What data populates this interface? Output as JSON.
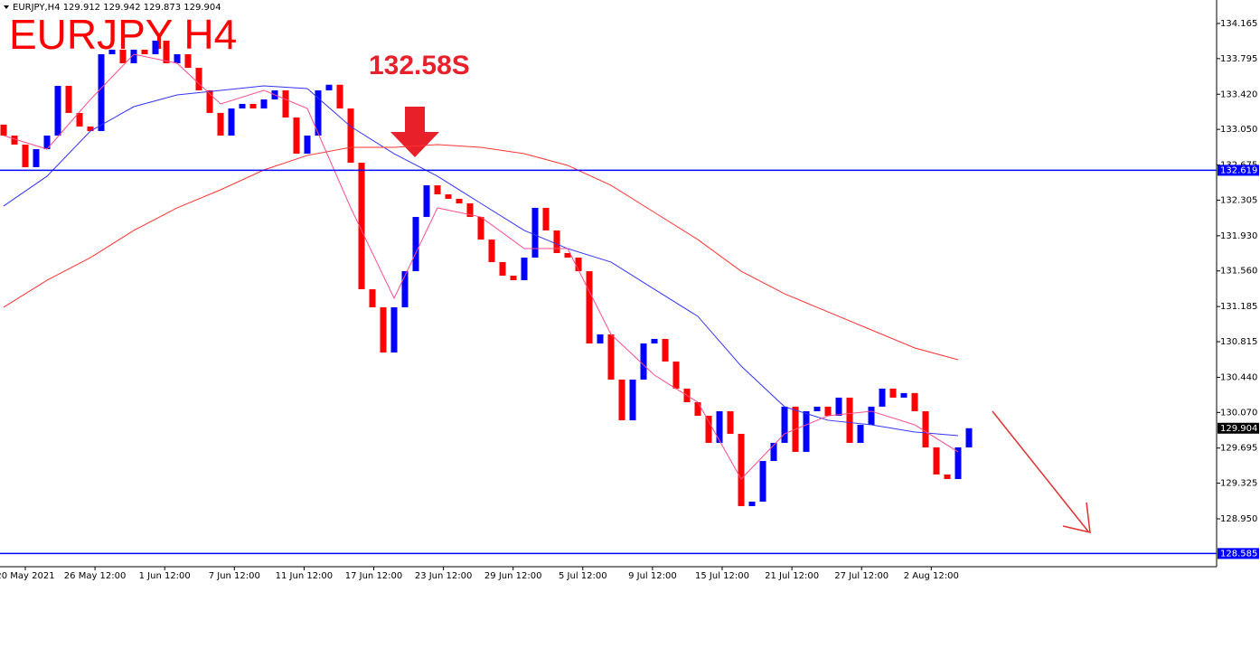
{
  "chart_data": {
    "type": "candlestick",
    "header": "EURJPY,H4  129.912 129.942 129.873 129.904",
    "title": "EURJPY H4",
    "annotation": "132.58S",
    "up_color": "#0000ff",
    "down_color": "#ff0000",
    "ylim": [
      128.446,
      134.412
    ],
    "yticks": [
      134.165,
      133.795,
      {
        "value": 133.42,
        "label": "133.420"
      },
      {
        "value": 133.05,
        "label": "133.050"
      },
      132.675,
      132.305,
      {
        "value": 131.93,
        "label": "131.930"
      },
      {
        "value": 131.56,
        "label": "131.560"
      },
      131.185,
      130.815,
      {
        "value": 130.44,
        "label": "130.440"
      },
      {
        "value": 130.07,
        "label": "130.070"
      },
      129.695,
      129.325,
      {
        "value": 128.95,
        "label": "128.950"
      }
    ],
    "xticks": [
      "20 May 2021",
      "26 May 12:00",
      "1 Jun 12:00",
      "7 Jun 12:00",
      "11 Jun 12:00",
      "17 Jun 12:00",
      "23 Jun 12:00",
      "29 Jun 12:00",
      "5 Jul 12:00",
      "9 Jul 12:00",
      "15 Jul 12:00",
      "21 Jul 12:00",
      "27 Jul 12:00",
      "2 Aug 12:00"
    ],
    "open": [
      133.1,
      132.985,
      132.89,
      132.652,
      132.842,
      132.985,
      133.508,
      133.223,
      133.08,
      133.032,
      133.841,
      133.889,
      133.746,
      133.889,
      133.841,
      133.984,
      133.746,
      133.841,
      133.698,
      133.461,
      133.223,
      132.985,
      133.27,
      133.318,
      133.27,
      133.365,
      133.461,
      133.175,
      132.794,
      132.985,
      133.461,
      133.52,
      133.27,
      132.699,
      131.367,
      131.177,
      130.701,
      131.177,
      131.557,
      132.128,
      132.461,
      132.366,
      132.319,
      132.271,
      132.128,
      131.89,
      131.653,
      131.51,
      131.462,
      131.7,
      132.224,
      131.986,
      131.748,
      131.7,
      131.557,
      130.796,
      130.892,
      130.416,
      129.988,
      130.416,
      130.796,
      130.844,
      130.606,
      130.321,
      130.178,
      130.035,
      129.75,
      130.083,
      129.845,
      129.084,
      129.131,
      129.559,
      129.75,
      130.131,
      129.655,
      130.083,
      130.131,
      130.035,
      130.226,
      129.75,
      129.94,
      130.131,
      130.321,
      130.226,
      130.274,
      130.083,
      129.702,
      129.417,
      129.369,
      129.702
    ],
    "close": [
      132.985,
      132.89,
      132.652,
      132.842,
      132.985,
      133.508,
      133.223,
      133.08,
      133.032,
      133.841,
      133.889,
      133.746,
      133.889,
      133.841,
      133.984,
      133.746,
      133.841,
      133.698,
      133.461,
      133.223,
      132.985,
      133.27,
      133.318,
      133.27,
      133.365,
      133.461,
      133.175,
      132.794,
      132.985,
      133.461,
      133.52,
      133.27,
      132.699,
      131.367,
      131.177,
      130.701,
      131.177,
      131.557,
      132.128,
      132.461,
      132.366,
      132.319,
      132.271,
      132.128,
      131.89,
      131.653,
      131.51,
      131.462,
      131.7,
      132.224,
      131.986,
      131.748,
      131.7,
      131.557,
      130.796,
      130.892,
      130.416,
      129.988,
      130.416,
      130.796,
      130.844,
      130.606,
      130.321,
      130.178,
      130.035,
      129.75,
      130.083,
      129.845,
      129.084,
      129.131,
      129.559,
      129.75,
      130.131,
      129.655,
      130.083,
      130.131,
      130.035,
      130.226,
      129.75,
      129.94,
      130.131,
      130.321,
      130.226,
      130.274,
      130.083,
      129.702,
      129.417,
      129.369,
      129.702,
      129.904
    ],
    "lines": [
      {
        "color": "#3333ff",
        "values": [
          132.243,
          132.557,
          133.032,
          133.289,
          133.413,
          133.46,
          133.508,
          133.48,
          133.08,
          132.794,
          132.557,
          132.271,
          131.986,
          131.795,
          131.653,
          131.367,
          131.082,
          130.558,
          130.13,
          129.988,
          129.94,
          129.864,
          129.826
        ]
      },
      {
        "color": "#ff4d88",
        "values": [
          132.985,
          132.842,
          133.365,
          133.841,
          133.746,
          133.318,
          133.461,
          133.27,
          132.224,
          131.272,
          132.224,
          132.128,
          131.795,
          131.795,
          130.892,
          130.463,
          130.178,
          129.369,
          129.845,
          130.035,
          130.083,
          129.94,
          129.655
        ]
      },
      {
        "color": "#ff3333",
        "values": [
          131.177,
          131.462,
          131.7,
          131.986,
          132.224,
          132.414,
          132.623,
          132.776,
          132.861,
          132.861,
          132.89,
          132.861,
          132.794,
          132.671,
          132.461,
          132.176,
          131.89,
          131.557,
          131.319,
          131.129,
          130.939,
          130.749,
          130.625
        ]
      }
    ],
    "levels": [
      {
        "value": 132.619,
        "color": "#0000ff"
      },
      {
        "value": 128.585,
        "color": "#0000ff"
      }
    ],
    "last_price": 129.904
  }
}
